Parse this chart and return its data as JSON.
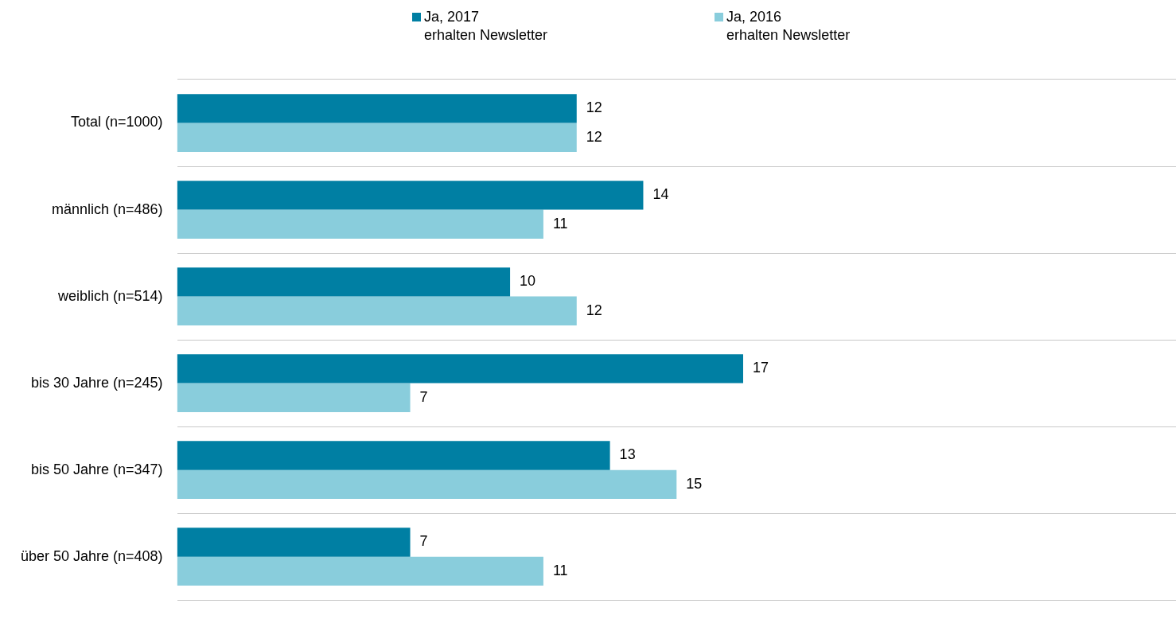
{
  "chart_data": {
    "type": "bar",
    "orientation": "horizontal",
    "categories": [
      "Total (n=1000)",
      "männlich (n=486)",
      "weiblich (n=514)",
      "bis 30 Jahre (n=245)",
      "bis 50 Jahre (n=347)",
      "über 50 Jahre (n=408)"
    ],
    "series": [
      {
        "name": "Ja, 2017\nerhalten Newsletter",
        "color": "#007fa3",
        "values": [
          12,
          14,
          10,
          17,
          13,
          7
        ]
      },
      {
        "name": "Ja, 2016\nerhalten Newsletter",
        "color": "#89cddc",
        "values": [
          12,
          11,
          12,
          7,
          15,
          11
        ]
      }
    ],
    "xlim": [
      0,
      30
    ],
    "data_labels": true,
    "grid": "y",
    "legend": "top"
  }
}
